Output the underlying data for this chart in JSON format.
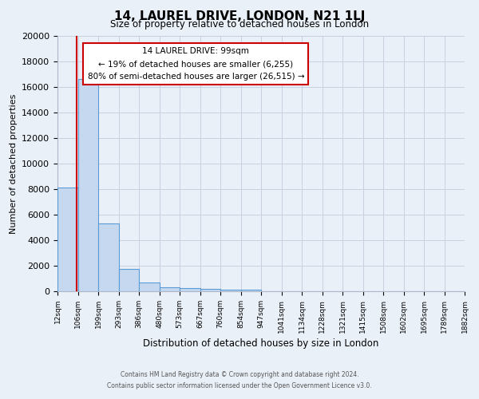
{
  "title": "14, LAUREL DRIVE, LONDON, N21 1LJ",
  "subtitle": "Size of property relative to detached houses in London",
  "xlabel": "Distribution of detached houses by size in London",
  "ylabel": "Number of detached properties",
  "bin_edges": [
    12,
    106,
    199,
    293,
    386,
    480,
    573,
    667,
    760,
    854,
    947,
    1041,
    1134,
    1228,
    1321,
    1415,
    1508,
    1602,
    1695,
    1789,
    1882
  ],
  "bin_labels": [
    "12sqm",
    "106sqm",
    "199sqm",
    "293sqm",
    "386sqm",
    "480sqm",
    "573sqm",
    "667sqm",
    "760sqm",
    "854sqm",
    "947sqm",
    "1041sqm",
    "1134sqm",
    "1228sqm",
    "1321sqm",
    "1415sqm",
    "1508sqm",
    "1602sqm",
    "1695sqm",
    "1789sqm",
    "1882sqm"
  ],
  "bar_heights": [
    8100,
    16600,
    5300,
    1750,
    700,
    300,
    230,
    190,
    150,
    100,
    0,
    0,
    0,
    0,
    0,
    0,
    0,
    0,
    0,
    0
  ],
  "bar_color": "#c5d8f0",
  "bar_edge_color": "#5b9bd5",
  "property_line_x": 99,
  "property_line_color": "#cc0000",
  "annotation_title": "14 LAUREL DRIVE: 99sqm",
  "annotation_line1": "← 19% of detached houses are smaller (6,255)",
  "annotation_line2": "80% of semi-detached houses are larger (26,515) →",
  "annotation_box_facecolor": "#ffffff",
  "annotation_box_edgecolor": "#cc0000",
  "ylim": [
    0,
    20000
  ],
  "yticks": [
    0,
    2000,
    4000,
    6000,
    8000,
    10000,
    12000,
    14000,
    16000,
    18000,
    20000
  ],
  "grid_color": "#c8d0e0",
  "bg_color": "#eaf0f8",
  "footer_line1": "Contains HM Land Registry data © Crown copyright and database right 2024.",
  "footer_line2": "Contains public sector information licensed under the Open Government Licence v3.0."
}
